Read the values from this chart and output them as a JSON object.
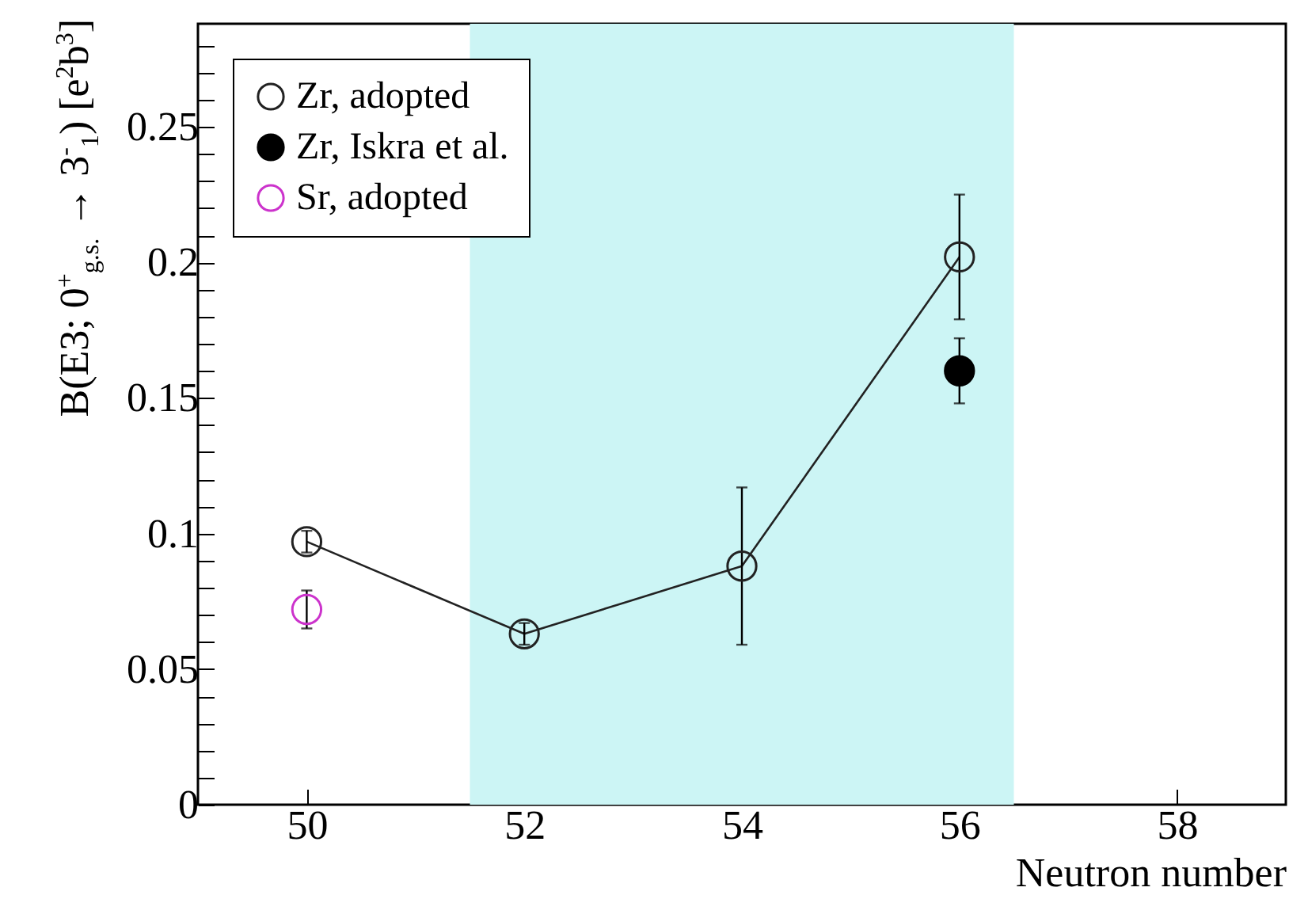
{
  "chart_data": {
    "type": "scatter",
    "xlabel": "Neutron number",
    "ylabel": "B(E3; 0$^{+}$$_{g.s.}$ → 3$^{-}$$_{1}$) [e$^{2}$b$^{3}$]",
    "xlim": [
      49,
      59
    ],
    "xticks": [
      50,
      52,
      54,
      56,
      58
    ],
    "ylim": [
      0,
      0.288
    ],
    "yticks": [
      0,
      {
        "value": 0.01,
        "label": null
      },
      {
        "value": 0.02,
        "label": null
      },
      {
        "value": 0.03,
        "label": null
      },
      {
        "value": 0.04,
        "label": null
      },
      0.05,
      {
        "value": 0.06,
        "label": null
      },
      {
        "value": 0.07,
        "label": null
      },
      {
        "value": 0.08,
        "label": null
      },
      {
        "value": 0.09,
        "label": null
      },
      0.1,
      {
        "value": 0.11,
        "label": null
      },
      {
        "value": 0.12,
        "label": null
      },
      {
        "value": 0.13,
        "label": null
      },
      {
        "value": 0.14,
        "label": null
      },
      0.15,
      {
        "value": 0.16,
        "label": null
      },
      {
        "value": 0.17,
        "label": null
      },
      {
        "value": 0.18,
        "label": null
      },
      {
        "value": 0.19,
        "label": null
      },
      0.2,
      {
        "value": 0.21,
        "label": null
      },
      {
        "value": 0.22,
        "label": null
      },
      {
        "value": 0.23,
        "label": null
      },
      {
        "value": 0.24,
        "label": null
      },
      0.25,
      {
        "value": 0.26,
        "label": null
      },
      {
        "value": 0.27,
        "label": null
      },
      {
        "value": 0.28,
        "label": null
      }
    ],
    "grid": false,
    "legend": "top left",
    "bands": [
      {
        "axis": "x",
        "from": 51.5,
        "to": 56.5,
        "color": "#ccf5f5"
      }
    ],
    "series": [
      {
        "name": "Zr, adopted",
        "type": "line",
        "color": "#222222",
        "marker": "circle-open",
        "x": [
          50,
          52,
          54,
          56
        ],
        "values": [
          0.097,
          0.063,
          0.088,
          0.202
        ],
        "errors": [
          0.004,
          0.004,
          0.029,
          0.023
        ]
      },
      {
        "name": "Zr, Iskra et al.",
        "color": "#000000",
        "marker": "circle",
        "x": [
          56
        ],
        "values": [
          0.16
        ],
        "errors": [
          0.012
        ]
      },
      {
        "name": "Sr, adopted",
        "color": "#cc33cc",
        "marker": "circle-open",
        "x": [
          50
        ],
        "values": [
          0.072
        ],
        "errors": [
          0.007
        ]
      }
    ]
  }
}
